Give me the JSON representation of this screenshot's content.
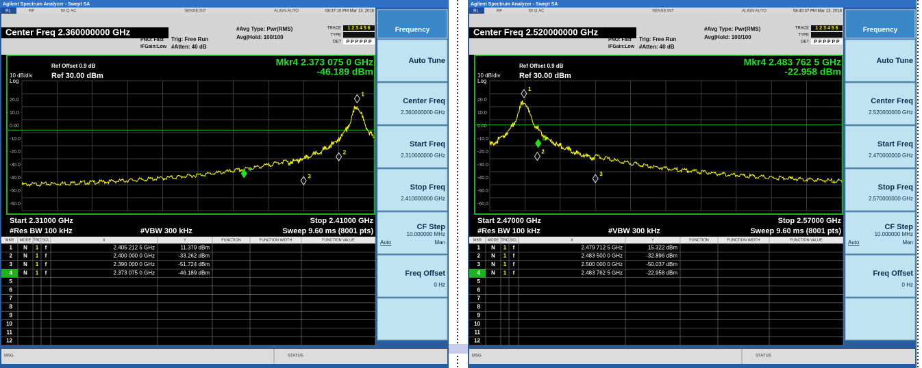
{
  "panels": [
    {
      "app_title": "Agilent Spectrum Analyzer - Swept SA",
      "status_bar": {
        "mode": "RL",
        "rf": "RF",
        "input": "50 Ω  AC",
        "sense": "SENSE:INT",
        "align": "ALIGN AUTO",
        "timestamp": "08:37:10 PM Mar 13, 2018"
      },
      "center_freq": "Center Freq  2.360000000 GHz",
      "settings": {
        "pno": "PNO: Fast",
        "ifgain": "IFGain:Low",
        "trig": "Trig: Free Run",
        "atten": "#Atten: 40 dB",
        "avg_type": "#Avg Type: Pwr(RMS)",
        "avg_hold": "Avg|Hold: 100/100",
        "trace_label": "TRACE",
        "trace_nums": "1 2 3 4 5 6",
        "type_label": "TYPE",
        "det_label": "DET",
        "det": "P P P P P P"
      },
      "graph": {
        "ref_offset": "Ref Offset 0.9 dB",
        "scale": "10 dB/div",
        "ref_level": "Ref 30.00 dBm",
        "log": "Log",
        "marker_freq": "Mkr4 2.373 075 0 GHz",
        "marker_amp": "-46.189 dBm",
        "y_labels": [
          "20.0",
          "10.0",
          "0.00",
          "-10.0",
          "-20.0",
          "-30.0",
          "-40.0",
          "-50.0",
          "-60.0"
        ],
        "start": "Start 2.31000 GHz",
        "stop": "Stop 2.41000 GHz",
        "rbw": "#Res BW 100 kHz",
        "vbw": "#VBW 300 kHz",
        "sweep": "Sweep  9.60 ms (8001 pts)"
      },
      "marker_table": {
        "headers": [
          "MKR",
          "MODE",
          "TRC",
          "SCL",
          "X",
          "Y",
          "FUNCTION",
          "FUNCTION WIDTH",
          "FUNCTION VALUE"
        ],
        "rows": [
          [
            "1",
            "N",
            "1",
            "f",
            "2.405 212 5 GHz",
            "11.379 dBm"
          ],
          [
            "2",
            "N",
            "1",
            "f",
            "2.400 000 0 GHz",
            "-33.262 dBm"
          ],
          [
            "3",
            "N",
            "1",
            "f",
            "2.390 000 0 GHz",
            "-51.724 dBm"
          ],
          [
            "4",
            "N",
            "1",
            "f",
            "2.373 075 0 GHz",
            "-46.189 dBm"
          ],
          [
            "5"
          ],
          [
            "6"
          ],
          [
            "7"
          ],
          [
            "8"
          ],
          [
            "9"
          ],
          [
            "10"
          ],
          [
            "11"
          ],
          [
            "12"
          ]
        ]
      },
      "footer": {
        "msg": "MSG",
        "status": "STATUS"
      },
      "menu": {
        "title": "Frequency",
        "items": [
          {
            "label": "Auto Tune"
          },
          {
            "label": "Center Freq",
            "value": "2.360000000 GHz"
          },
          {
            "label": "Start Freq",
            "value": "2.310000000 GHz"
          },
          {
            "label": "Stop Freq",
            "value": "2.410000000 GHz"
          },
          {
            "label": "CF Step",
            "value": "10.000000 MHz",
            "options": [
              "Auto",
              "Man"
            ]
          },
          {
            "label": "Freq Offset",
            "value": "0 Hz"
          }
        ]
      }
    },
    {
      "app_title": "Agilent Spectrum Analyzer - Swept SA",
      "status_bar": {
        "mode": "RL",
        "rf": "RF",
        "input": "50 Ω  AC",
        "sense": "SENSE:INT",
        "align": "ALIGN AUTO",
        "timestamp": "08:40:37 PM Mar 13, 2018"
      },
      "center_freq": "Center Freq  2.520000000 GHz",
      "settings": {
        "pno": "PNO: Fast",
        "ifgain": "IFGain:Low",
        "trig": "Trig: Free Run",
        "atten": "#Atten: 40 dB",
        "avg_type": "#Avg Type: Pwr(RMS)",
        "avg_hold": "Avg|Hold: 100/100",
        "trace_label": "TRACE",
        "trace_nums": "1 2 3 4 5 6",
        "type_label": "TYPE",
        "det_label": "DET",
        "det": "P P P P P P"
      },
      "graph": {
        "ref_offset": "Ref Offset 0.9 dB",
        "scale": "10 dB/div",
        "ref_level": "Ref 30.00 dBm",
        "log": "Log",
        "marker_freq": "Mkr4 2.483 762 5 GHz",
        "marker_amp": "-22.958 dBm",
        "y_labels": [
          "20.0",
          "10.0",
          "0.00",
          "-10.0",
          "-20.0",
          "-30.0",
          "-40.0",
          "-50.0",
          "-60.0"
        ],
        "start": "Start 2.47000 GHz",
        "stop": "Stop 2.57000 GHz",
        "rbw": "#Res BW 100 kHz",
        "vbw": "#VBW 300 kHz",
        "sweep": "Sweep  9.60 ms (8001 pts)"
      },
      "marker_table": {
        "headers": [
          "MKR",
          "MODE",
          "TRC",
          "SCL",
          "X",
          "Y",
          "FUNCTION",
          "FUNCTION WIDTH",
          "FUNCTION VALUE"
        ],
        "rows": [
          [
            "1",
            "N",
            "1",
            "f",
            "2.479 712 5 GHz",
            "15.322 dBm"
          ],
          [
            "2",
            "N",
            "1",
            "f",
            "2.483 500 0 GHz",
            "-32.896 dBm"
          ],
          [
            "3",
            "N",
            "1",
            "f",
            "2.500 000 0 GHz",
            "-50.037 dBm"
          ],
          [
            "4",
            "N",
            "1",
            "f",
            "2.483 762 5 GHz",
            "-22.958 dBm"
          ],
          [
            "5"
          ],
          [
            "6"
          ],
          [
            "7"
          ],
          [
            "8"
          ],
          [
            "9"
          ],
          [
            "10"
          ],
          [
            "11"
          ],
          [
            "12"
          ]
        ]
      },
      "footer": {
        "msg": "MSG",
        "status": "STATUS"
      },
      "menu": {
        "title": "Frequency",
        "items": [
          {
            "label": "Auto Tune"
          },
          {
            "label": "Center Freq",
            "value": "2.520000000 GHz"
          },
          {
            "label": "Start Freq",
            "value": "2.470000000 GHz"
          },
          {
            "label": "Stop Freq",
            "value": "2.570000000 GHz"
          },
          {
            "label": "CF Step",
            "value": "10.000000 MHz",
            "options": [
              "Auto",
              "Man"
            ]
          },
          {
            "label": "Freq Offset",
            "value": "0 Hz"
          }
        ]
      }
    }
  ]
}
